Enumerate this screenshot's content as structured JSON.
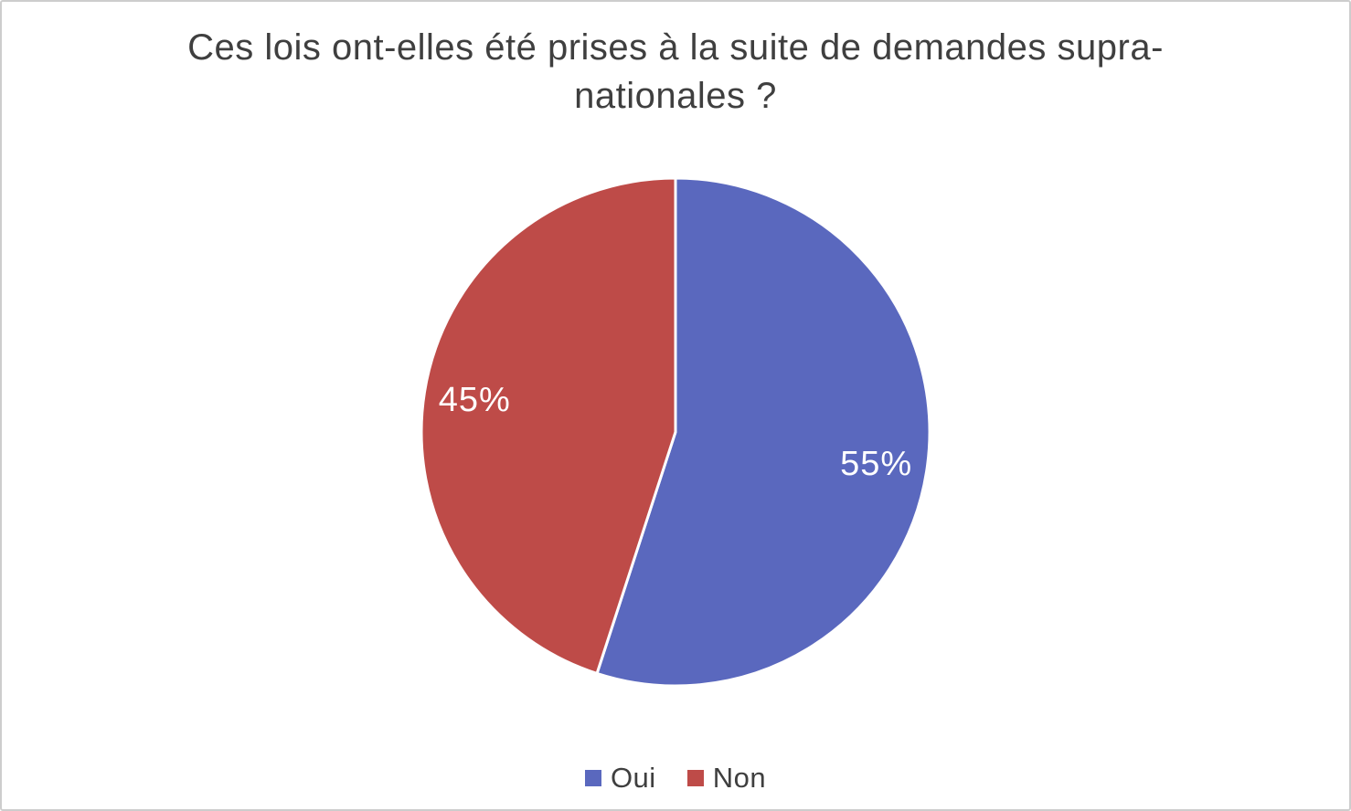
{
  "page": {
    "background_color": "#FFFFFF",
    "border_color": "#CDCDCD"
  },
  "chart_data": {
    "type": "pie",
    "title": "Ces lois ont-elles été prises à la suite de demandes supra-nationales ?",
    "start_angle_deg": 0,
    "direction": "clockwise",
    "legend_position": "bottom",
    "data_label_color": "#FFFFFF",
    "title_color": "#3F3F3F",
    "slices": [
      {
        "label": "Oui",
        "value": 55,
        "percent_label": "55%",
        "color": "#5A68BE"
      },
      {
        "label": "Non",
        "value": 45,
        "percent_label": "45%",
        "color": "#BE4B48"
      }
    ]
  }
}
